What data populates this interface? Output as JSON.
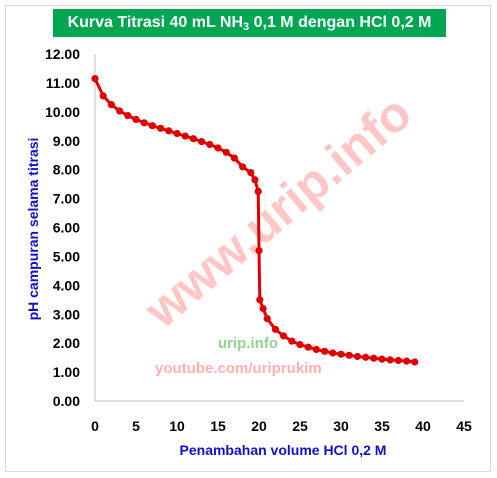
{
  "chart_data": {
    "type": "line",
    "title_parts": [
      "Kurva Titrasi 40 mL NH",
      "3",
      " 0,1 M dengan HCl 0,2 M"
    ],
    "xlabel": "Penambahan volume HCl 0,2 M",
    "ylabel": "pH campuran selama titrasi",
    "xlim": [
      0,
      45
    ],
    "ylim": [
      0,
      12
    ],
    "x_ticks": [
      "0",
      "5",
      "10",
      "15",
      "20",
      "25",
      "30",
      "35",
      "40",
      "45"
    ],
    "y_ticks": [
      "0.00",
      "1.00",
      "2.00",
      "3.00",
      "4.00",
      "5.00",
      "6.00",
      "7.00",
      "8.00",
      "9.00",
      "10.00",
      "11.00",
      "12.00"
    ],
    "grid": false,
    "series": [
      {
        "color": "#e00000",
        "x": [
          0,
          1,
          2,
          3,
          4,
          5,
          6,
          7,
          8,
          9,
          10,
          11,
          12,
          13,
          14,
          15,
          16,
          17,
          18,
          19,
          19.5,
          19.9,
          20,
          20.1,
          20.5,
          21,
          22,
          23,
          24,
          25,
          26,
          27,
          28,
          29,
          30,
          31,
          32,
          33,
          34,
          35,
          36,
          37,
          38,
          39
        ],
        "y": [
          11.15,
          10.55,
          10.25,
          10.03,
          9.87,
          9.74,
          9.62,
          9.52,
          9.43,
          9.34,
          9.25,
          9.16,
          9.07,
          8.97,
          8.87,
          8.75,
          8.6,
          8.4,
          8.1,
          7.9,
          7.65,
          7.25,
          5.2,
          3.5,
          3.2,
          2.85,
          2.48,
          2.25,
          2.07,
          1.95,
          1.86,
          1.78,
          1.72,
          1.66,
          1.62,
          1.58,
          1.54,
          1.51,
          1.48,
          1.45,
          1.42,
          1.4,
          1.38,
          1.35
        ]
      }
    ]
  },
  "watermarks": {
    "diagonal": "www.urip.info",
    "center_green": "urip.info",
    "center_red": "youtube.com/uriprukim"
  },
  "colors": {
    "title_bg": "#00a651",
    "axis_title": "#1010c8",
    "series": "#e00000"
  }
}
